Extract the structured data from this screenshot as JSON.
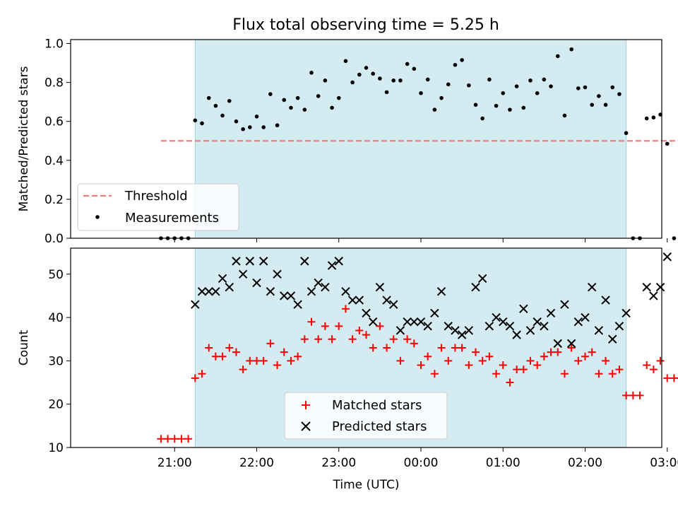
{
  "chart_data": [
    {
      "type": "scatter",
      "title": "Flux total observing time = 5.25 h",
      "xlabel": "",
      "ylabel": "Matched/Predicted stars",
      "ylim": [
        0,
        1.02
      ],
      "yticks": [
        "0.0",
        "0.2",
        "0.4",
        "0.6",
        "0.8",
        "1.0"
      ],
      "observing_window": [
        "21:15",
        "02:30"
      ],
      "threshold": {
        "name": "Threshold",
        "value": 0.5,
        "x_range": [
          "20:50",
          "03:20"
        ],
        "color": "#f08080"
      },
      "series": [
        {
          "name": "Measurements",
          "color": "#000000",
          "points": [
            [
              "20:50",
              0.0
            ],
            [
              "20:55",
              0.0
            ],
            [
              "21:00",
              0.0
            ],
            [
              "21:05",
              0.0
            ],
            [
              "21:10",
              0.0
            ],
            [
              "21:15",
              0.605
            ],
            [
              "21:20",
              0.59
            ],
            [
              "21:25",
              0.72
            ],
            [
              "21:30",
              0.68
            ],
            [
              "21:35",
              0.63
            ],
            [
              "21:40",
              0.705
            ],
            [
              "21:45",
              0.6
            ],
            [
              "21:50",
              0.56
            ],
            [
              "21:55",
              0.57
            ],
            [
              "22:00",
              0.625
            ],
            [
              "22:05",
              0.57
            ],
            [
              "22:10",
              0.74
            ],
            [
              "22:15",
              0.58
            ],
            [
              "22:20",
              0.71
            ],
            [
              "22:25",
              0.67
            ],
            [
              "22:30",
              0.72
            ],
            [
              "22:35",
              0.66
            ],
            [
              "22:40",
              0.85
            ],
            [
              "22:45",
              0.73
            ],
            [
              "22:50",
              0.81
            ],
            [
              "22:55",
              0.67
            ],
            [
              "23:00",
              0.72
            ],
            [
              "23:05",
              0.91
            ],
            [
              "23:10",
              0.8
            ],
            [
              "23:15",
              0.84
            ],
            [
              "23:20",
              0.875
            ],
            [
              "23:25",
              0.845
            ],
            [
              "23:30",
              0.82
            ],
            [
              "23:35",
              0.75
            ],
            [
              "23:40",
              0.81
            ],
            [
              "23:45",
              0.81
            ],
            [
              "23:50",
              0.895
            ],
            [
              "23:55",
              0.87
            ],
            [
              "00:00",
              0.745
            ],
            [
              "00:05",
              0.815
            ],
            [
              "00:10",
              0.66
            ],
            [
              "00:15",
              0.72
            ],
            [
              "00:20",
              0.79
            ],
            [
              "00:25",
              0.89
            ],
            [
              "00:30",
              0.915
            ],
            [
              "00:35",
              0.785
            ],
            [
              "00:40",
              0.685
            ],
            [
              "00:45",
              0.615
            ],
            [
              "00:50",
              0.815
            ],
            [
              "00:55",
              0.68
            ],
            [
              "01:00",
              0.745
            ],
            [
              "01:05",
              0.66
            ],
            [
              "01:10",
              0.78
            ],
            [
              "01:15",
              0.67
            ],
            [
              "01:20",
              0.81
            ],
            [
              "01:25",
              0.745
            ],
            [
              "01:30",
              0.815
            ],
            [
              "01:35",
              0.78
            ],
            [
              "01:40",
              0.935
            ],
            [
              "01:45",
              0.63
            ],
            [
              "01:50",
              0.97
            ],
            [
              "01:55",
              0.77
            ],
            [
              "02:00",
              0.775
            ],
            [
              "02:05",
              0.685
            ],
            [
              "02:10",
              0.73
            ],
            [
              "02:15",
              0.685
            ],
            [
              "02:20",
              0.775
            ],
            [
              "02:25",
              0.74
            ],
            [
              "02:30",
              0.54
            ],
            [
              "02:35",
              0.0
            ],
            [
              "02:40",
              0.0
            ],
            [
              "02:45",
              0.615
            ],
            [
              "02:50",
              0.62
            ],
            [
              "02:55",
              0.635
            ],
            [
              "03:00",
              0.485
            ],
            [
              "03:05",
              0.0
            ],
            [
              "03:10",
              0.0
            ],
            [
              "03:15",
              0.0
            ],
            [
              "03:20",
              0.0
            ],
            [
              "03:25",
              0.0
            ]
          ]
        }
      ],
      "legend": {
        "placement": "lower-left",
        "entries": [
          "Threshold",
          "Measurements"
        ]
      },
      "grid": false
    },
    {
      "type": "scatter",
      "title": "",
      "xlabel": "Time (UTC)",
      "ylabel": "Count",
      "ylim": [
        10,
        56
      ],
      "yticks": [
        "10",
        "20",
        "30",
        "40",
        "50"
      ],
      "xticks": [
        "21:00",
        "22:00",
        "23:00",
        "00:00",
        "01:00",
        "02:00",
        "03:00"
      ],
      "observing_window": [
        "21:15",
        "02:30"
      ],
      "series": [
        {
          "name": "Matched stars",
          "color": "#ff0000",
          "marker": "+",
          "points": [
            [
              "20:50",
              12
            ],
            [
              "20:55",
              12
            ],
            [
              "21:00",
              12
            ],
            [
              "21:05",
              12
            ],
            [
              "21:10",
              12
            ],
            [
              "21:15",
              26
            ],
            [
              "21:20",
              27
            ],
            [
              "21:25",
              33
            ],
            [
              "21:30",
              31
            ],
            [
              "21:35",
              31
            ],
            [
              "21:40",
              33
            ],
            [
              "21:45",
              32
            ],
            [
              "21:50",
              28
            ],
            [
              "21:55",
              30
            ],
            [
              "22:00",
              30
            ],
            [
              "22:05",
              30
            ],
            [
              "22:10",
              34
            ],
            [
              "22:15",
              29
            ],
            [
              "22:20",
              32
            ],
            [
              "22:25",
              30
            ],
            [
              "22:30",
              31
            ],
            [
              "22:35",
              35
            ],
            [
              "22:40",
              39
            ],
            [
              "22:45",
              35
            ],
            [
              "22:50",
              38
            ],
            [
              "22:55",
              35
            ],
            [
              "23:00",
              38
            ],
            [
              "23:05",
              42
            ],
            [
              "23:10",
              35
            ],
            [
              "23:15",
              37
            ],
            [
              "23:20",
              36
            ],
            [
              "23:25",
              33
            ],
            [
              "23:30",
              38
            ],
            [
              "23:35",
              33
            ],
            [
              "23:40",
              35
            ],
            [
              "23:45",
              30
            ],
            [
              "23:50",
              35
            ],
            [
              "23:55",
              34
            ],
            [
              "00:00",
              29
            ],
            [
              "00:05",
              31
            ],
            [
              "00:10",
              27
            ],
            [
              "00:15",
              33
            ],
            [
              "00:20",
              30
            ],
            [
              "00:25",
              33
            ],
            [
              "00:30",
              33
            ],
            [
              "00:35",
              29
            ],
            [
              "00:40",
              32
            ],
            [
              "00:45",
              30
            ],
            [
              "00:50",
              31
            ],
            [
              "00:55",
              27
            ],
            [
              "01:00",
              29
            ],
            [
              "01:05",
              25
            ],
            [
              "01:10",
              28
            ],
            [
              "01:15",
              28
            ],
            [
              "01:20",
              30
            ],
            [
              "01:25",
              29
            ],
            [
              "01:30",
              31
            ],
            [
              "01:35",
              32
            ],
            [
              "01:40",
              32
            ],
            [
              "01:45",
              27
            ],
            [
              "01:50",
              33
            ],
            [
              "01:55",
              30
            ],
            [
              "02:00",
              31
            ],
            [
              "02:05",
              32
            ],
            [
              "02:10",
              27
            ],
            [
              "02:15",
              30
            ],
            [
              "02:20",
              27
            ],
            [
              "02:25",
              28
            ],
            [
              "02:30",
              22
            ],
            [
              "02:35",
              22
            ],
            [
              "02:40",
              22
            ],
            [
              "02:45",
              29
            ],
            [
              "02:50",
              28
            ],
            [
              "02:55",
              30
            ],
            [
              "03:00",
              26
            ],
            [
              "03:05",
              26
            ],
            [
              "03:10",
              26
            ],
            [
              "03:15",
              26
            ],
            [
              "03:20",
              26
            ],
            [
              "03:25",
              26
            ]
          ]
        },
        {
          "name": "Predicted stars",
          "color": "#000000",
          "marker": "x",
          "points": [
            [
              "21:15",
              43
            ],
            [
              "21:20",
              46
            ],
            [
              "21:25",
              46
            ],
            [
              "21:30",
              46
            ],
            [
              "21:35",
              49
            ],
            [
              "21:40",
              47
            ],
            [
              "21:45",
              53
            ],
            [
              "21:50",
              50
            ],
            [
              "21:55",
              53
            ],
            [
              "22:00",
              48
            ],
            [
              "22:05",
              53
            ],
            [
              "22:10",
              46
            ],
            [
              "22:15",
              50
            ],
            [
              "22:20",
              45
            ],
            [
              "22:25",
              45
            ],
            [
              "22:30",
              43
            ],
            [
              "22:35",
              53
            ],
            [
              "22:40",
              46
            ],
            [
              "22:45",
              48
            ],
            [
              "22:50",
              47
            ],
            [
              "22:55",
              52
            ],
            [
              "23:00",
              53
            ],
            [
              "23:05",
              46
            ],
            [
              "23:10",
              44
            ],
            [
              "23:15",
              44
            ],
            [
              "23:20",
              41
            ],
            [
              "23:25",
              39
            ],
            [
              "23:30",
              47
            ],
            [
              "23:35",
              44
            ],
            [
              "23:40",
              43
            ],
            [
              "23:45",
              37
            ],
            [
              "23:50",
              39
            ],
            [
              "23:55",
              39
            ],
            [
              "00:00",
              39
            ],
            [
              "00:05",
              38
            ],
            [
              "00:10",
              41
            ],
            [
              "00:15",
              46
            ],
            [
              "00:20",
              38
            ],
            [
              "00:25",
              37
            ],
            [
              "00:30",
              36
            ],
            [
              "00:35",
              37
            ],
            [
              "00:40",
              47
            ],
            [
              "00:45",
              49
            ],
            [
              "00:50",
              38
            ],
            [
              "00:55",
              40
            ],
            [
              "01:00",
              39
            ],
            [
              "01:05",
              38
            ],
            [
              "01:10",
              36
            ],
            [
              "01:15",
              42
            ],
            [
              "01:20",
              37
            ],
            [
              "01:25",
              39
            ],
            [
              "01:30",
              38
            ],
            [
              "01:35",
              41
            ],
            [
              "01:40",
              34
            ],
            [
              "01:45",
              43
            ],
            [
              "01:50",
              34
            ],
            [
              "01:55",
              39
            ],
            [
              "02:00",
              40
            ],
            [
              "02:05",
              47
            ],
            [
              "02:10",
              37
            ],
            [
              "02:15",
              44
            ],
            [
              "02:20",
              35
            ],
            [
              "02:25",
              38
            ],
            [
              "02:30",
              41
            ],
            [
              "02:45",
              47
            ],
            [
              "02:50",
              45
            ],
            [
              "02:55",
              47
            ],
            [
              "03:00",
              54
            ]
          ]
        }
      ],
      "legend": {
        "placement": "lower-center",
        "entries": [
          "Matched stars",
          "Predicted stars"
        ]
      },
      "grid": false
    }
  ]
}
